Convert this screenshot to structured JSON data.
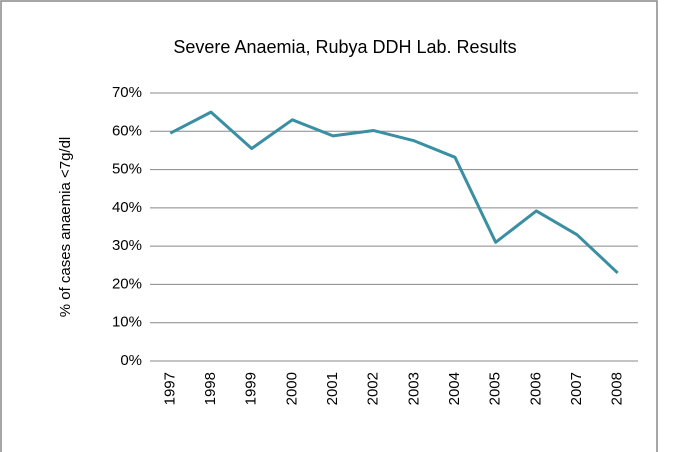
{
  "chart_data": {
    "type": "line",
    "title": "Severe Anaemia, Rubya DDH Lab. Results",
    "y_label": "% of cases anaemia <7g/dl",
    "categories": [
      "1997",
      "1998",
      "1999",
      "2000",
      "2001",
      "2002",
      "2003",
      "2004",
      "2005",
      "2006",
      "2007",
      "2008"
    ],
    "series": [
      {
        "name": "Severe Anaemia",
        "color": "#3a8fa3",
        "values": [
          59.5,
          65,
          55.5,
          63,
          58.8,
          60.2,
          57.5,
          53.2,
          31,
          39.2,
          33,
          23
        ]
      }
    ],
    "ylim": [
      0,
      70
    ],
    "yticks": [
      {
        "value": 0,
        "label": "0%"
      },
      {
        "value": 10,
        "label": "10%"
      },
      {
        "value": 20,
        "label": "20%"
      },
      {
        "value": 30,
        "label": "30%"
      },
      {
        "value": 40,
        "label": "40%"
      },
      {
        "value": 50,
        "label": "50%"
      },
      {
        "value": 60,
        "label": "60%"
      },
      {
        "value": 70,
        "label": "70%"
      }
    ],
    "grid": true
  }
}
